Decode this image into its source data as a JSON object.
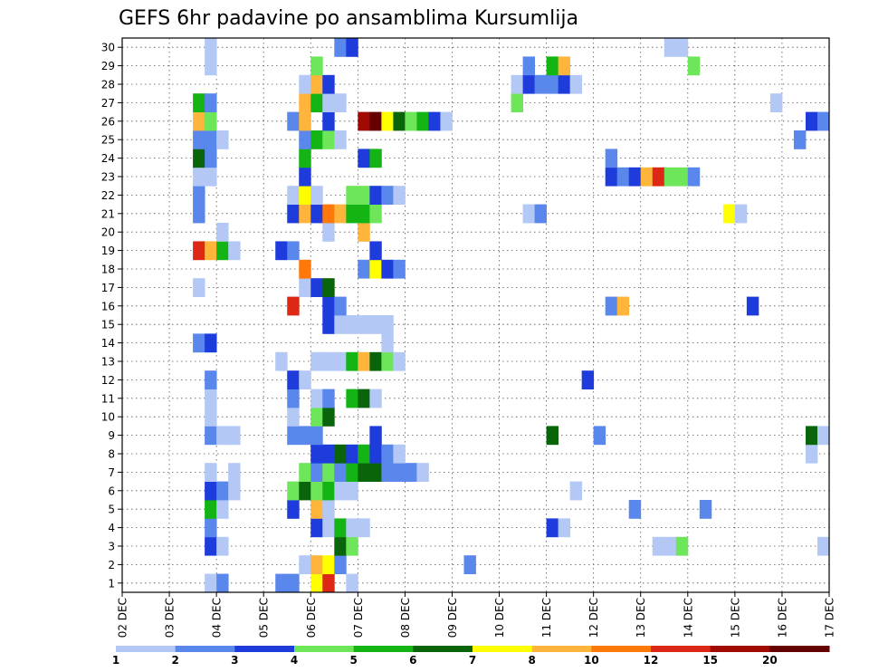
{
  "chart_data": {
    "type": "heatmap",
    "title": "GEFS 6hr padavine po ansamblima Kursumlija",
    "x_tick_labels": [
      "02 DEC",
      "03 DEC",
      "04 DEC",
      "05 DEC",
      "06 DEC",
      "07 DEC",
      "08 DEC",
      "09 DEC",
      "10 DEC",
      "11 DEC",
      "12 DEC",
      "13 DEC",
      "14 DEC",
      "15 DEC",
      "16 DEC",
      "17 DEC"
    ],
    "y_tick_labels": [
      "1",
      "2",
      "3",
      "4",
      "5",
      "6",
      "7",
      "8",
      "9",
      "10",
      "11",
      "12",
      "13",
      "14",
      "15",
      "16",
      "17",
      "18",
      "19",
      "20",
      "21",
      "22",
      "23",
      "24",
      "25",
      "26",
      "27",
      "28",
      "29",
      "30"
    ],
    "x_range_steps": [
      0,
      60
    ],
    "y_range_members": [
      0,
      30
    ],
    "grid": true,
    "legend_position": "bottom",
    "legend_labels": [
      "1",
      "2",
      "3",
      "4",
      "5",
      "6",
      "7",
      "8",
      "10",
      "12",
      "15",
      "20"
    ],
    "legend_colors": [
      "#b4c8f5",
      "#5a87eb",
      "#1e3cdc",
      "#6ee65a",
      "#14b414",
      "#0a640a",
      "#ffff00",
      "#ffb43c",
      "#ff780a",
      "#dc2814",
      "#a00a00",
      "#640000"
    ],
    "bin_colors": [
      "#b4c8f5",
      "#5a87eb",
      "#1e3cdc",
      "#6ee65a",
      "#14b414",
      "#0a640a",
      "#ffff00",
      "#ffb43c",
      "#ff780a",
      "#dc2814",
      "#a00a00",
      "#640000"
    ],
    "cells_member_step_bin": [
      [
        1,
        8,
        0
      ],
      [
        1,
        9,
        0
      ],
      [
        1,
        9,
        1
      ],
      [
        1,
        14,
        1
      ],
      [
        1,
        15,
        1
      ],
      [
        1,
        17,
        6
      ],
      [
        1,
        18,
        9
      ],
      [
        1,
        20,
        0
      ],
      [
        2,
        16,
        0
      ],
      [
        2,
        17,
        7
      ],
      [
        2,
        18,
        6
      ],
      [
        2,
        19,
        1
      ],
      [
        2,
        30,
        1
      ],
      [
        3,
        8,
        2
      ],
      [
        3,
        9,
        0
      ],
      [
        3,
        19,
        5
      ],
      [
        3,
        20,
        3
      ],
      [
        3,
        46,
        0
      ],
      [
        3,
        47,
        0
      ],
      [
        3,
        48,
        3
      ],
      [
        3,
        60,
        0
      ],
      [
        4,
        8,
        1
      ],
      [
        4,
        17,
        2
      ],
      [
        4,
        18,
        0
      ],
      [
        4,
        19,
        4
      ],
      [
        4,
        20,
        0
      ],
      [
        4,
        21,
        0
      ],
      [
        4,
        37,
        2
      ],
      [
        4,
        38,
        0
      ],
      [
        5,
        8,
        4
      ],
      [
        5,
        9,
        0
      ],
      [
        5,
        15,
        2
      ],
      [
        5,
        17,
        7
      ],
      [
        5,
        18,
        0
      ],
      [
        5,
        44,
        1
      ],
      [
        5,
        50,
        1
      ],
      [
        6,
        8,
        2
      ],
      [
        6,
        9,
        1
      ],
      [
        6,
        10,
        0
      ],
      [
        6,
        15,
        3
      ],
      [
        6,
        16,
        5
      ],
      [
        6,
        17,
        3
      ],
      [
        6,
        18,
        4
      ],
      [
        6,
        19,
        0
      ],
      [
        6,
        20,
        0
      ],
      [
        6,
        39,
        0
      ],
      [
        7,
        8,
        0
      ],
      [
        7,
        10,
        0
      ],
      [
        7,
        16,
        3
      ],
      [
        7,
        17,
        1
      ],
      [
        7,
        18,
        3
      ],
      [
        7,
        19,
        1
      ],
      [
        7,
        20,
        4
      ],
      [
        7,
        21,
        5
      ],
      [
        7,
        22,
        5
      ],
      [
        7,
        23,
        1
      ],
      [
        7,
        24,
        1
      ],
      [
        7,
        25,
        1
      ],
      [
        7,
        26,
        0
      ],
      [
        8,
        17,
        2
      ],
      [
        8,
        18,
        2
      ],
      [
        8,
        19,
        5
      ],
      [
        8,
        20,
        2
      ],
      [
        8,
        21,
        4
      ],
      [
        8,
        22,
        2
      ],
      [
        8,
        23,
        1
      ],
      [
        8,
        24,
        0
      ],
      [
        8,
        59,
        0
      ],
      [
        9,
        8,
        1
      ],
      [
        9,
        9,
        0
      ],
      [
        9,
        10,
        0
      ],
      [
        9,
        15,
        1
      ],
      [
        9,
        16,
        1
      ],
      [
        9,
        17,
        1
      ],
      [
        9,
        22,
        2
      ],
      [
        9,
        37,
        5
      ],
      [
        9,
        41,
        1
      ],
      [
        9,
        59,
        5
      ],
      [
        9,
        60,
        0
      ],
      [
        10,
        8,
        0
      ],
      [
        10,
        15,
        0
      ],
      [
        10,
        17,
        3
      ],
      [
        10,
        18,
        5
      ],
      [
        11,
        8,
        0
      ],
      [
        11,
        15,
        1
      ],
      [
        11,
        17,
        0
      ],
      [
        11,
        18,
        1
      ],
      [
        11,
        20,
        4
      ],
      [
        11,
        21,
        5
      ],
      [
        11,
        22,
        0
      ],
      [
        12,
        8,
        1
      ],
      [
        12,
        15,
        2
      ],
      [
        12,
        16,
        0
      ],
      [
        12,
        40,
        2
      ],
      [
        13,
        14,
        0
      ],
      [
        13,
        17,
        0
      ],
      [
        13,
        18,
        0
      ],
      [
        13,
        19,
        0
      ],
      [
        13,
        20,
        4
      ],
      [
        13,
        21,
        7
      ],
      [
        13,
        22,
        5
      ],
      [
        13,
        23,
        3
      ],
      [
        13,
        24,
        0
      ],
      [
        14,
        7,
        1
      ],
      [
        14,
        8,
        2
      ],
      [
        14,
        23,
        0
      ],
      [
        15,
        18,
        2
      ],
      [
        15,
        19,
        0
      ],
      [
        15,
        20,
        0
      ],
      [
        15,
        21,
        0
      ],
      [
        15,
        22,
        0
      ],
      [
        15,
        23,
        0
      ],
      [
        16,
        15,
        9
      ],
      [
        16,
        18,
        2
      ],
      [
        16,
        19,
        1
      ],
      [
        16,
        42,
        1
      ],
      [
        16,
        43,
        7
      ],
      [
        16,
        54,
        2
      ],
      [
        17,
        7,
        0
      ],
      [
        17,
        16,
        0
      ],
      [
        17,
        17,
        2
      ],
      [
        17,
        18,
        5
      ],
      [
        18,
        16,
        8
      ],
      [
        18,
        21,
        1
      ],
      [
        18,
        22,
        6
      ],
      [
        18,
        23,
        2
      ],
      [
        18,
        24,
        1
      ],
      [
        19,
        7,
        9
      ],
      [
        19,
        8,
        7
      ],
      [
        19,
        9,
        4
      ],
      [
        19,
        10,
        0
      ],
      [
        19,
        14,
        2
      ],
      [
        19,
        15,
        1
      ],
      [
        19,
        22,
        2
      ],
      [
        20,
        9,
        0
      ],
      [
        20,
        18,
        0
      ],
      [
        20,
        21,
        7
      ],
      [
        21,
        7,
        1
      ],
      [
        21,
        15,
        2
      ],
      [
        21,
        16,
        7
      ],
      [
        21,
        17,
        2
      ],
      [
        21,
        18,
        8
      ],
      [
        21,
        19,
        7
      ],
      [
        21,
        20,
        4
      ],
      [
        21,
        21,
        4
      ],
      [
        21,
        22,
        3
      ],
      [
        21,
        35,
        0
      ],
      [
        21,
        36,
        1
      ],
      [
        21,
        52,
        6
      ],
      [
        21,
        53,
        0
      ],
      [
        22,
        7,
        1
      ],
      [
        22,
        15,
        0
      ],
      [
        22,
        16,
        6
      ],
      [
        22,
        17,
        0
      ],
      [
        22,
        20,
        3
      ],
      [
        22,
        21,
        3
      ],
      [
        22,
        22,
        2
      ],
      [
        22,
        23,
        1
      ],
      [
        22,
        24,
        0
      ],
      [
        23,
        7,
        0
      ],
      [
        23,
        8,
        0
      ],
      [
        23,
        16,
        2
      ],
      [
        23,
        42,
        2
      ],
      [
        23,
        43,
        1
      ],
      [
        23,
        44,
        2
      ],
      [
        23,
        45,
        7
      ],
      [
        23,
        46,
        9
      ],
      [
        23,
        47,
        3
      ],
      [
        23,
        48,
        3
      ],
      [
        23,
        49,
        1
      ],
      [
        24,
        7,
        5
      ],
      [
        24,
        8,
        1
      ],
      [
        24,
        16,
        4
      ],
      [
        24,
        21,
        2
      ],
      [
        24,
        22,
        4
      ],
      [
        24,
        42,
        1
      ],
      [
        25,
        7,
        1
      ],
      [
        25,
        8,
        1
      ],
      [
        25,
        9,
        0
      ],
      [
        25,
        16,
        1
      ],
      [
        25,
        17,
        4
      ],
      [
        25,
        18,
        3
      ],
      [
        25,
        19,
        0
      ],
      [
        25,
        58,
        1
      ],
      [
        26,
        7,
        7
      ],
      [
        26,
        8,
        3
      ],
      [
        26,
        15,
        1
      ],
      [
        26,
        16,
        7
      ],
      [
        26,
        18,
        2
      ],
      [
        26,
        21,
        10
      ],
      [
        26,
        22,
        11
      ],
      [
        26,
        23,
        6
      ],
      [
        26,
        24,
        5
      ],
      [
        26,
        25,
        3
      ],
      [
        26,
        26,
        4
      ],
      [
        26,
        27,
        2
      ],
      [
        26,
        28,
        0
      ],
      [
        26,
        59,
        2
      ],
      [
        26,
        60,
        1
      ],
      [
        27,
        7,
        4
      ],
      [
        27,
        8,
        1
      ],
      [
        27,
        16,
        7
      ],
      [
        27,
        17,
        4
      ],
      [
        27,
        18,
        0
      ],
      [
        27,
        19,
        0
      ],
      [
        27,
        34,
        3
      ],
      [
        27,
        56,
        0
      ],
      [
        28,
        16,
        0
      ],
      [
        28,
        17,
        7
      ],
      [
        28,
        18,
        2
      ],
      [
        28,
        34,
        0
      ],
      [
        28,
        35,
        2
      ],
      [
        28,
        36,
        1
      ],
      [
        28,
        37,
        1
      ],
      [
        28,
        38,
        2
      ],
      [
        28,
        39,
        0
      ],
      [
        29,
        8,
        0
      ],
      [
        29,
        17,
        3
      ],
      [
        29,
        35,
        1
      ],
      [
        29,
        37,
        4
      ],
      [
        29,
        38,
        7
      ],
      [
        29,
        49,
        3
      ],
      [
        30,
        8,
        0
      ],
      [
        30,
        19,
        1
      ],
      [
        30,
        20,
        2
      ],
      [
        30,
        47,
        0
      ],
      [
        30,
        48,
        0
      ]
    ]
  }
}
